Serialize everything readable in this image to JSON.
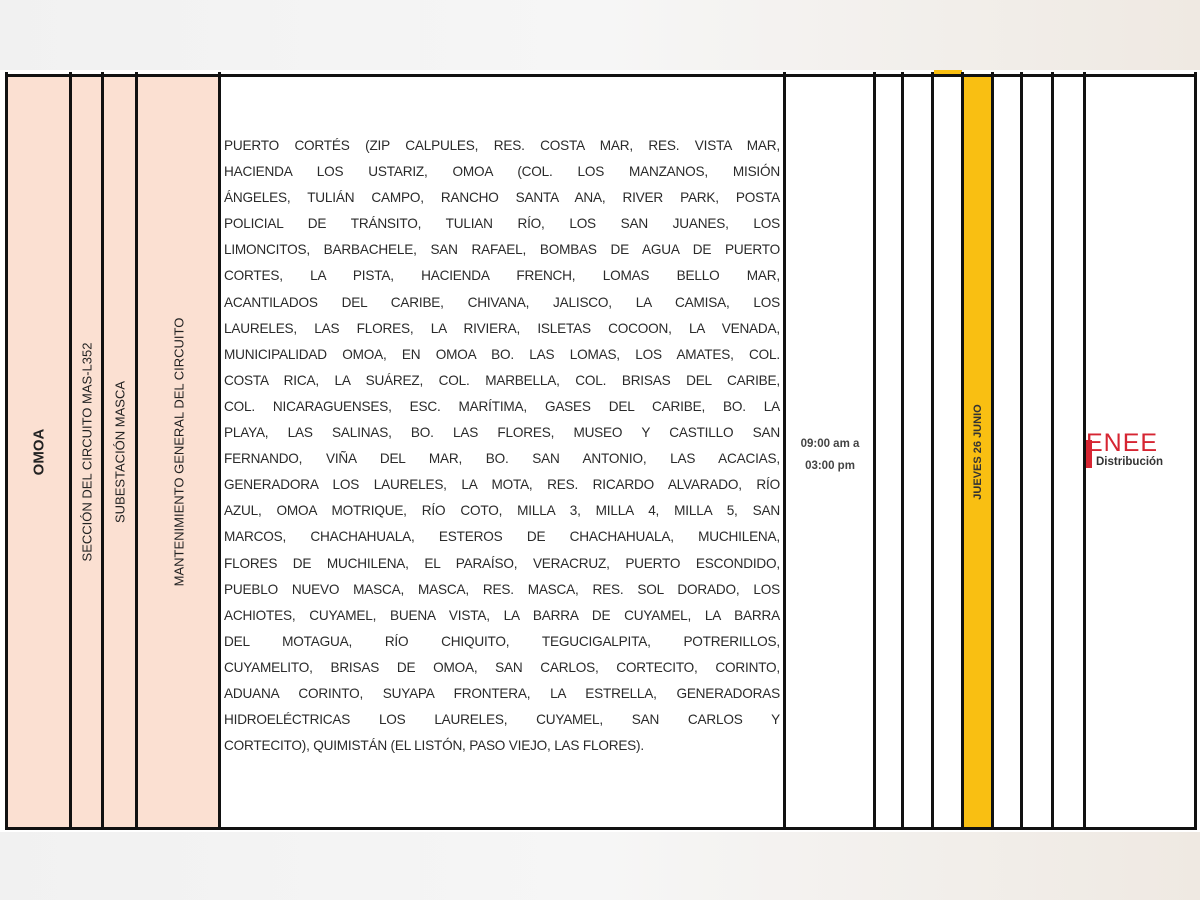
{
  "table": {
    "department": "OMOA",
    "circuit": "SECCIÓN DEL CIRCUITO MAS-L352",
    "substation": "SUBESTACIÓN MASCA",
    "work": "MANTENIMIENTO GENERAL DEL CIRCUITO",
    "areas_lines": [
      "PUERTO CORTÉS (ZIP CALPULES, RES. COSTA MAR, RES. VISTA MAR,",
      "HACIENDA LOS USTARIZ, OMOA (COL. LOS MANZANOS, MISIÓN",
      "ÁNGELES, TULIÁN CAMPO, RANCHO SANTA ANA, RIVER PARK, POSTA",
      "POLICIAL DE TRÁNSITO, TULIAN RÍO, LOS SAN JUANES, LOS",
      "LIMONCITOS, BARBACHELE, SAN RAFAEL, BOMBAS DE AGUA DE PUERTO",
      "CORTES, LA PISTA, HACIENDA FRENCH, LOMAS BELLO MAR,",
      "ACANTILADOS DEL CARIBE, CHIVANA, JALISCO, LA CAMISA, LOS",
      "LAURELES, LAS FLORES, LA RIVIERA, ISLETAS COCOON, LA VENADA,",
      "MUNICIPALIDAD OMOA, EN OMOA BO. LAS LOMAS, LOS AMATES, COL.",
      "COSTA RICA, LA SUÁREZ, COL. MARBELLA, COL. BRISAS DEL CARIBE,",
      "COL. NICARAGUENSES, ESC. MARÍTIMA, GASES DEL CARIBE, BO. LA",
      "PLAYA, LAS SALINAS, BO. LAS FLORES, MUSEO Y CASTILLO SAN",
      "FERNANDO, VIÑA DEL MAR, BO. SAN ANTONIO, LAS ACACIAS,",
      "GENERADORA LOS LAURELES, LA MOTA, RES. RICARDO ALVARADO, RÍO",
      "AZUL, OMOA MOTRIQUE, RÍO COTO, MILLA 3, MILLA 4, MILLA 5, SAN",
      "MARCOS, CHACHAHUALA, ESTEROS DE CHACHAHUALA, MUCHILENA,",
      "FLORES DE MUCHILENA, EL PARAÍSO, VERACRUZ, PUERTO ESCONDIDO,",
      "PUEBLO NUEVO MASCA, MASCA, RES. MASCA, RES. SOL DORADO, LOS",
      "ACHIOTES, CUYAMEL, BUENA VISTA, LA BARRA DE CUYAMEL, LA BARRA",
      "DEL MOTAGUA, RÍO CHIQUITO, TEGUCIGALPITA, POTRERILLOS,",
      "CUYAMELITO, BRISAS DE OMOA, SAN CARLOS, CORTECITO, CORINTO,",
      "ADUANA CORINTO, SUYAPA FRONTERA, LA ESTRELLA, GENERADORAS",
      "HIDROELÉCTRICAS LOS LAURELES, CUYAMEL, SAN CARLOS Y",
      "CORTECITO), QUIMISTÁN (EL LISTÓN, PASO VIEJO, LAS FLORES)."
    ],
    "time_line1": "09:00 am a",
    "time_line2": "03:00 pm",
    "day": "JUEVES 26 JUNIO"
  },
  "logo": {
    "name": "ENEE",
    "subtitle": "Distribución"
  },
  "colors": {
    "peach": "#fbe0d2",
    "highlight": "#f9bf12",
    "brand": "#d62532"
  }
}
